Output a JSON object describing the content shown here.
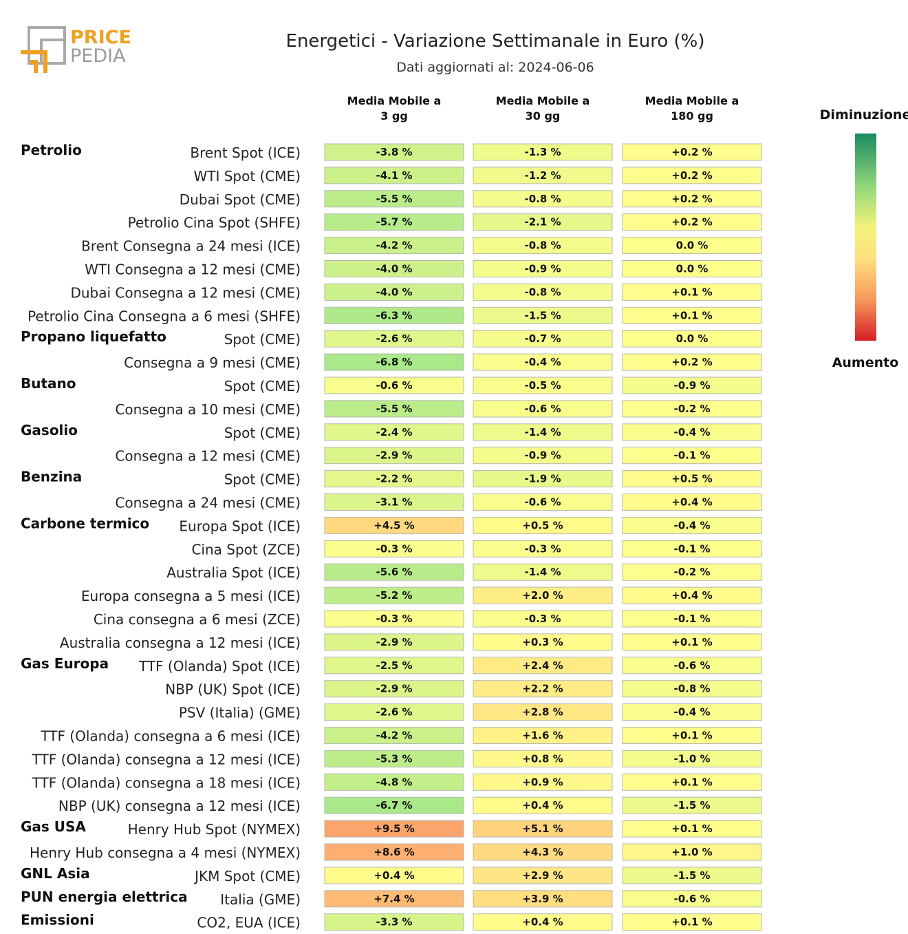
{
  "header": {
    "title": "Energetici - Variazione Settimanale in Euro (%)",
    "subtitle": "Dati aggiornati al: 2024-06-06"
  },
  "logo": {
    "line1": "PRICE",
    "line2": "PEDIA",
    "colors": {
      "orange": "#f0a020",
      "gray": "#9a9a9a"
    }
  },
  "legend": {
    "top_label": "Diminuzione",
    "bottom_label": "Aumento"
  },
  "chart_data": {
    "type": "heatmap",
    "columns": [
      "Media Mobile a\n3 gg",
      "Media Mobile a\n30 gg",
      "Media Mobile a\n180 gg"
    ],
    "rows": [
      {
        "group": "Petrolio",
        "label": "Brent Spot (ICE)",
        "values": [
          -3.8,
          -1.3,
          0.2
        ]
      },
      {
        "group": "",
        "label": "WTI Spot (CME)",
        "values": [
          -4.1,
          -1.2,
          0.2
        ]
      },
      {
        "group": "",
        "label": "Dubai Spot (CME)",
        "values": [
          -5.5,
          -0.8,
          0.2
        ]
      },
      {
        "group": "",
        "label": "Petrolio Cina Spot (SHFE)",
        "values": [
          -5.7,
          -2.1,
          0.2
        ]
      },
      {
        "group": "",
        "label": "Brent Consegna a 24 mesi (ICE)",
        "values": [
          -4.2,
          -0.8,
          0.0
        ]
      },
      {
        "group": "",
        "label": "WTI Consegna a 12 mesi (CME)",
        "values": [
          -4.0,
          -0.9,
          0.0
        ]
      },
      {
        "group": "",
        "label": "Dubai Consegna a 12 mesi (CME)",
        "values": [
          -4.0,
          -0.8,
          0.1
        ]
      },
      {
        "group": "",
        "label": "Petrolio Cina Consegna a 6 mesi (SHFE)",
        "values": [
          -6.3,
          -1.5,
          0.1
        ]
      },
      {
        "group": "Propano liquefatto",
        "label": "Spot (CME)",
        "values": [
          -2.6,
          -0.7,
          0.0
        ]
      },
      {
        "group": "",
        "label": "Consegna a 9 mesi (CME)",
        "values": [
          -6.8,
          -0.4,
          0.2
        ]
      },
      {
        "group": "Butano",
        "label": "Spot (CME)",
        "values": [
          -0.6,
          -0.5,
          -0.9
        ]
      },
      {
        "group": "",
        "label": "Consegna a 10 mesi (CME)",
        "values": [
          -5.5,
          -0.6,
          -0.2
        ]
      },
      {
        "group": "Gasolio",
        "label": "Spot (CME)",
        "values": [
          -2.4,
          -1.4,
          -0.4
        ]
      },
      {
        "group": "",
        "label": "Consegna a 12 mesi (CME)",
        "values": [
          -2.9,
          -0.9,
          -0.1
        ]
      },
      {
        "group": "Benzina",
        "label": "Spot (CME)",
        "values": [
          -2.2,
          -1.9,
          0.5
        ]
      },
      {
        "group": "",
        "label": "Consegna a 24 mesi (CME)",
        "values": [
          -3.1,
          -0.6,
          0.4
        ]
      },
      {
        "group": "Carbone termico",
        "label": "Europa Spot (ICE)",
        "values": [
          4.5,
          0.5,
          -0.4
        ]
      },
      {
        "group": "",
        "label": "Cina Spot (ZCE)",
        "values": [
          -0.3,
          -0.3,
          -0.1
        ]
      },
      {
        "group": "",
        "label": "Australia Spot (ICE)",
        "values": [
          -5.6,
          -1.4,
          -0.2
        ]
      },
      {
        "group": "",
        "label": "Europa consegna a 5 mesi (ICE)",
        "values": [
          -5.2,
          2.0,
          0.4
        ]
      },
      {
        "group": "",
        "label": "Cina consegna a 6 mesi (ZCE)",
        "values": [
          -0.3,
          -0.3,
          -0.1
        ]
      },
      {
        "group": "",
        "label": "Australia consegna a 12 mesi (ICE)",
        "values": [
          -2.9,
          0.3,
          0.1
        ]
      },
      {
        "group": "Gas Europa",
        "label": "TTF (Olanda) Spot (ICE)",
        "values": [
          -2.5,
          2.4,
          -0.6
        ]
      },
      {
        "group": "",
        "label": "NBP (UK) Spot (ICE)",
        "values": [
          -2.9,
          2.2,
          -0.8
        ]
      },
      {
        "group": "",
        "label": "PSV (Italia) (GME)",
        "values": [
          -2.6,
          2.8,
          -0.4
        ]
      },
      {
        "group": "",
        "label": "TTF (Olanda) consegna a 6 mesi (ICE)",
        "values": [
          -4.2,
          1.6,
          0.1
        ]
      },
      {
        "group": "",
        "label": "TTF (Olanda) consegna a 12 mesi (ICE)",
        "values": [
          -5.3,
          0.8,
          -1.0
        ]
      },
      {
        "group": "",
        "label": "TTF (Olanda) consegna a 18 mesi (ICE)",
        "values": [
          -4.8,
          0.9,
          0.1
        ]
      },
      {
        "group": "",
        "label": "NBP (UK) consegna a 12 mesi (ICE)",
        "values": [
          -6.7,
          0.4,
          -1.5
        ]
      },
      {
        "group": "Gas USA",
        "label": "Henry Hub Spot (NYMEX)",
        "values": [
          9.5,
          5.1,
          0.1
        ]
      },
      {
        "group": "",
        "label": "Henry Hub consegna a 4 mesi (NYMEX)",
        "values": [
          8.6,
          4.3,
          1.0
        ]
      },
      {
        "group": "GNL Asia",
        "label": "JKM Spot (CME)",
        "values": [
          0.4,
          2.9,
          -1.5
        ]
      },
      {
        "group": "PUN energia elettrica",
        "label": "Italia (GME)",
        "values": [
          7.4,
          3.9,
          -0.6
        ]
      },
      {
        "group": "Emissioni",
        "label": "CO2, EUA (ICE)",
        "values": [
          -3.3,
          0.4,
          0.1
        ]
      }
    ],
    "value_format": "percent_signed_1dp",
    "colorscale": [
      "#d7191c",
      "#fdae61",
      "#ffff8c",
      "#a6e88a",
      "#1a9e6a"
    ]
  }
}
